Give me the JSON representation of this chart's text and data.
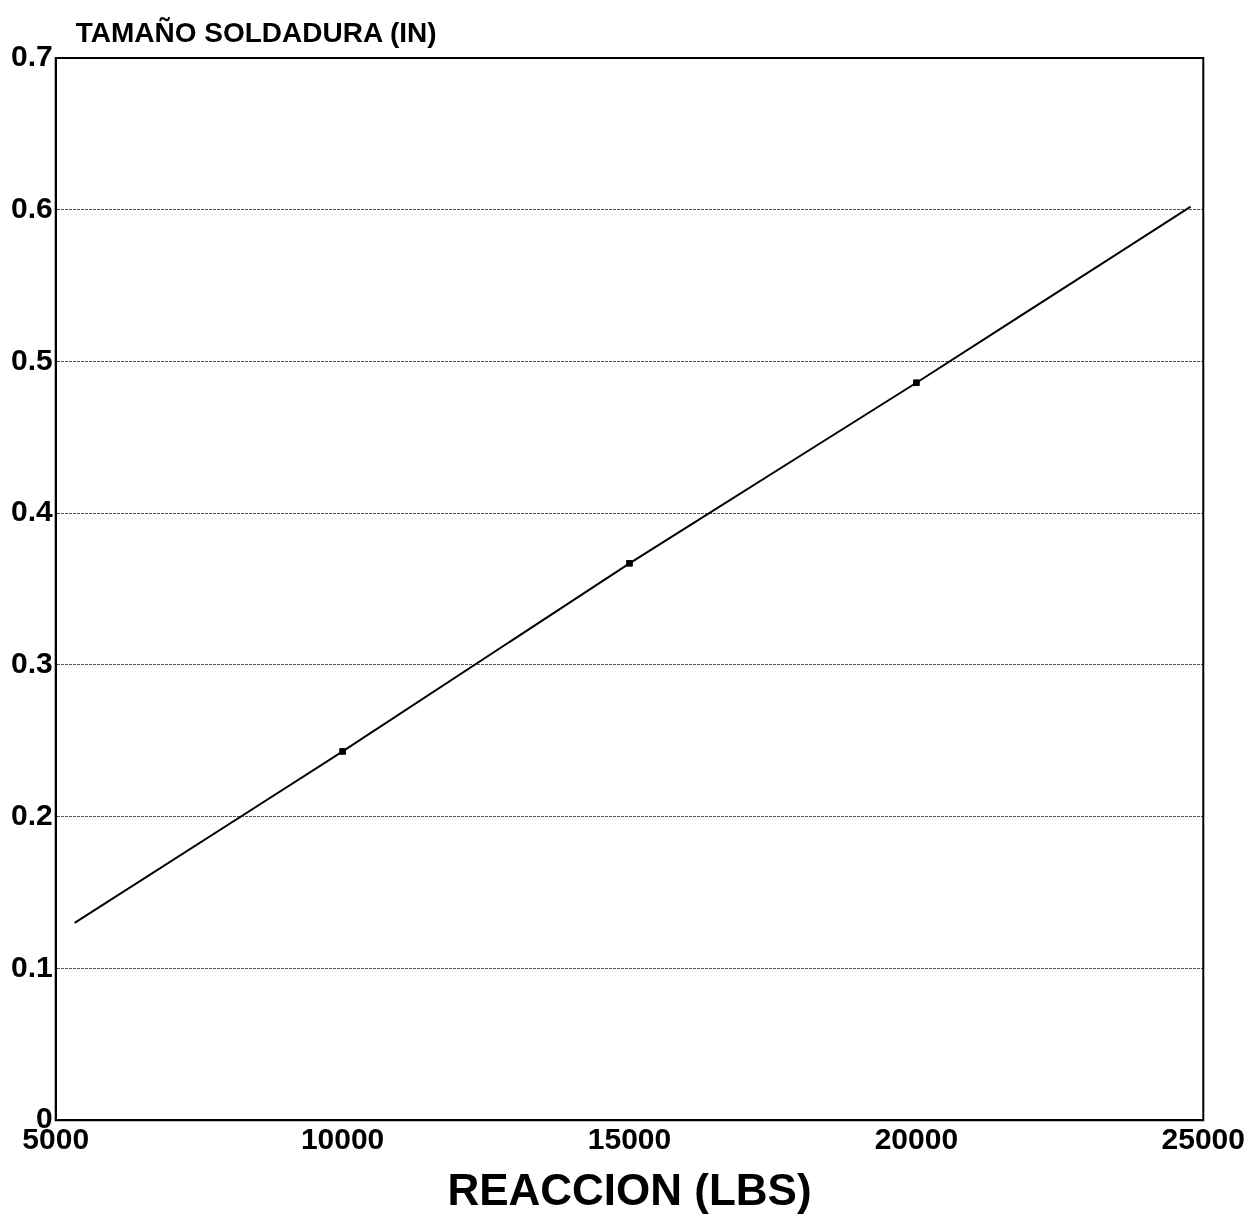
{
  "chart_data": {
    "type": "line",
    "ylabel": "TAMAÑO SOLDADURA (IN)",
    "xlabel": "REACCION (LBS)",
    "series": [
      {
        "color": "#000000",
        "marker": "none",
        "x": [
          5330,
          10000,
          15000,
          20000,
          24780
        ],
        "values": [
          0.13,
          0.243,
          0.367,
          0.486,
          0.602
        ]
      },
      {
        "type": "scatter",
        "color": "#000000",
        "marker": "square",
        "x": [
          10000,
          15000,
          20000
        ],
        "values": [
          0.243,
          0.367,
          0.486
        ]
      }
    ],
    "xlim": [
      5000,
      25000
    ],
    "xticks": [
      5000,
      10000,
      15000,
      20000,
      25000
    ],
    "ylim": [
      0,
      0.7
    ],
    "yticks": [
      0,
      0.1,
      0.2,
      0.3,
      0.4,
      0.5,
      0.6,
      0.7
    ],
    "grid": "y",
    "legend": false
  }
}
